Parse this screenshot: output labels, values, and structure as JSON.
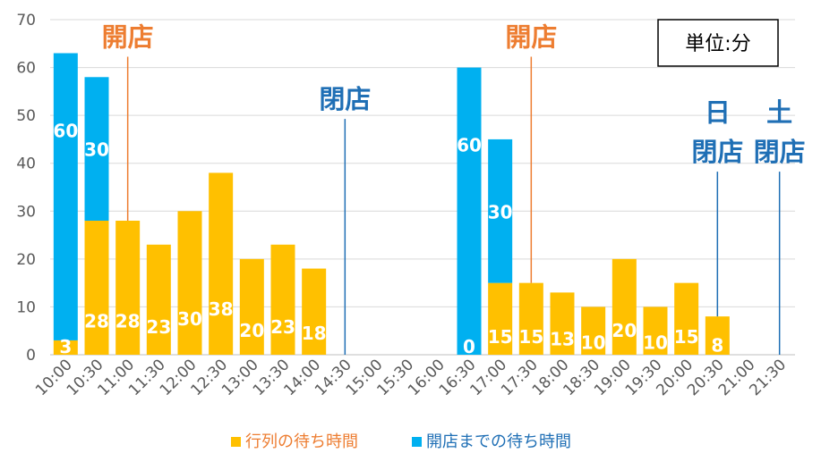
{
  "chart_data": {
    "type": "bar",
    "stacked": true,
    "categories": [
      "10:00",
      "10:30",
      "11:00",
      "11:30",
      "12:00",
      "12:30",
      "13:00",
      "13:30",
      "14:00",
      "14:30",
      "15:00",
      "15:30",
      "16:00",
      "16:30",
      "17:00",
      "17:30",
      "18:00",
      "18:30",
      "19:00",
      "19:30",
      "20:00",
      "20:30",
      "21:00",
      "21:30"
    ],
    "series": [
      {
        "name": "行列の待ち時間",
        "color": "#ffc000",
        "values": [
          3,
          28,
          28,
          23,
          30,
          38,
          20,
          23,
          18,
          null,
          null,
          null,
          null,
          0,
          15,
          15,
          13,
          10,
          20,
          10,
          15,
          8,
          null,
          null
        ],
        "labels": [
          "3",
          "28",
          "28",
          "23",
          "30",
          "38",
          "20",
          "23",
          "18",
          "",
          "",
          "",
          "",
          "0",
          "15",
          "15",
          "13",
          "10",
          "20",
          "10",
          "15",
          "8",
          "",
          ""
        ]
      },
      {
        "name": "開店までの待ち時間",
        "color": "#00b0f0",
        "values": [
          60,
          30,
          null,
          null,
          null,
          null,
          null,
          null,
          null,
          null,
          null,
          null,
          null,
          60,
          30,
          null,
          null,
          null,
          null,
          null,
          null,
          null,
          null,
          null
        ],
        "labels": [
          "60",
          "30",
          "",
          "",
          "",
          "",
          "",
          "",
          "",
          "",
          "",
          "",
          "",
          "60",
          "30",
          "",
          "",
          "",
          "",
          "",
          "",
          "",
          "",
          ""
        ]
      }
    ],
    "ylim": [
      0,
      70
    ],
    "yticks": [
      0,
      10,
      20,
      30,
      40,
      50,
      60,
      70
    ],
    "grid": true,
    "legend": "bottom",
    "annotations": [
      {
        "text": [
          "開店"
        ],
        "color": "#ed7d31",
        "category": "11:00",
        "line_from": 63,
        "line_to": 28
      },
      {
        "text": [
          "閉店"
        ],
        "color": "#1f6fb5",
        "category": "14:30",
        "line_from": 50,
        "line_to": 0
      },
      {
        "text": [
          "開店"
        ],
        "color": "#ed7d31",
        "category": "17:30",
        "line_from": 63,
        "line_to": 15
      },
      {
        "text": [
          "日",
          "閉店"
        ],
        "color": "#1f6fb5",
        "category": "20:30",
        "line_from": 39,
        "line_to": 8
      },
      {
        "text": [
          "土",
          "閉店"
        ],
        "color": "#1f6fb5",
        "category": "21:30",
        "line_from": 39,
        "line_to": 0
      }
    ],
    "unit_box": "単位:分"
  }
}
